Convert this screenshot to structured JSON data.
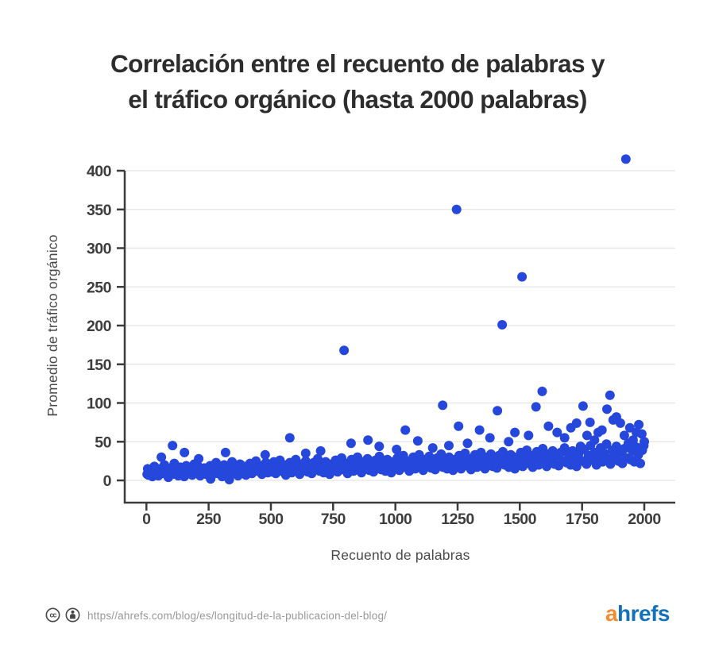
{
  "title": {
    "line1": "Correlación entre el recuento de palabras y",
    "line2": "el tráfico orgánico (hasta 2000 palabras)"
  },
  "colors": {
    "dot": "#2547db",
    "axis": "#3b3b3b",
    "grid": "#e8e8e8",
    "tick_label": "#3d3d3d",
    "axis_title": "#4a4a4a",
    "title_text": "#2d2d2d",
    "url_text": "#97989a",
    "license_icon": "#474747",
    "logo_a": "#f68a2e",
    "logo_hrefs": "#1271b8",
    "background": "#ffffff"
  },
  "footer": {
    "cc_label": "cc",
    "url": "https//ahrefs.com/blog/es/longitud-de-la-publicacion-del-blog/",
    "logo_a": "a",
    "logo_rest": "hrefs"
  },
  "chart_data": {
    "type": "scatter",
    "title": "Correlación entre el recuento de palabras y el tráfico orgánico (hasta 2000 palabras)",
    "xlabel": "Recuento de palabras",
    "ylabel": "Promedio de tráfico orgánico",
    "xlim": [
      0,
      2000
    ],
    "ylim": [
      0,
      400
    ],
    "x_ticks": [
      0,
      250,
      500,
      750,
      1000,
      1250,
      1500,
      1750,
      2000
    ],
    "y_ticks": [
      0,
      50,
      100,
      150,
      200,
      250,
      300,
      350,
      400
    ],
    "grid": "horizontal",
    "legend": "none",
    "marker": {
      "radius": 6,
      "color": "#2547db"
    },
    "band": {
      "x_start": 8,
      "x_step": 8,
      "values": [
        7,
        14,
        5,
        18,
        10,
        6,
        15,
        9,
        20,
        12,
        4,
        16,
        8,
        22,
        11,
        6,
        17,
        13,
        5,
        19,
        9,
        15,
        7,
        21,
        12,
        18,
        6,
        10,
        16,
        8,
        13,
        19,
        7,
        14,
        23,
        9,
        16,
        5,
        20,
        12,
        17,
        8,
        24,
        10,
        15,
        6,
        21,
        13,
        18,
        7,
        11,
        22,
        9,
        16,
        25,
        12,
        19,
        8,
        14,
        23,
        10,
        17,
        11,
        24,
        9,
        17,
        26,
        12,
        20,
        7,
        15,
        23,
        10,
        18,
        27,
        13,
        8,
        21,
        16,
        25,
        11,
        19,
        9,
        23,
        14,
        28,
        12,
        20,
        10,
        24,
        16,
        8,
        21,
        13,
        26,
        11,
        19,
        29,
        14,
        22,
        9,
        17,
        27,
        12,
        21,
        30,
        15,
        10,
        24,
        18,
        28,
        13,
        22,
        11,
        26,
        16,
        31,
        14,
        23,
        12,
        27,
        19,
        10,
        24,
        16,
        29,
        13,
        22,
        32,
        17,
        25,
        12,
        20,
        30,
        15,
        24,
        33,
        18,
        13,
        27,
        21,
        31,
        16,
        25,
        14,
        29,
        19,
        34,
        17,
        26,
        15,
        30,
        22,
        13,
        27,
        18,
        32,
        15,
        25,
        35,
        19,
        28,
        14,
        23,
        33,
        17,
        27,
        36,
        21,
        15,
        30,
        24,
        34,
        18,
        28,
        16,
        32,
        22,
        37,
        20,
        29,
        17,
        33,
        25,
        15,
        30,
        21,
        36,
        18,
        28,
        39,
        22,
        32,
        17,
        26,
        37,
        20,
        31,
        41,
        24,
        18,
        34,
        27,
        38,
        21,
        32,
        19,
        36,
        25,
        42,
        23,
        33,
        20,
        38,
        28,
        18,
        34,
        44,
        25,
        40,
        21,
        32,
        45,
        26,
        36,
        20,
        30,
        42,
        24,
        35,
        47,
        28,
        21,
        39,
        31,
        44,
        25,
        36,
        22,
        41,
        29,
        48,
        27,
        38,
        24,
        43,
        33,
        22,
        39,
        50
      ]
    },
    "points": [
      [
        3,
        8
      ],
      [
        5,
        15
      ],
      [
        60,
        30
      ],
      [
        105,
        45
      ],
      [
        153,
        36
      ],
      [
        210,
        28
      ],
      [
        258,
        2
      ],
      [
        318,
        36
      ],
      [
        333,
        1
      ],
      [
        477,
        33
      ],
      [
        576,
        55
      ],
      [
        640,
        35
      ],
      [
        700,
        38
      ],
      [
        794,
        168
      ],
      [
        822,
        48
      ],
      [
        890,
        52
      ],
      [
        935,
        44
      ],
      [
        1005,
        40
      ],
      [
        1040,
        65
      ],
      [
        1090,
        51
      ],
      [
        1150,
        42
      ],
      [
        1190,
        97
      ],
      [
        1215,
        45
      ],
      [
        1246,
        350
      ],
      [
        1254,
        70
      ],
      [
        1290,
        48
      ],
      [
        1338,
        65
      ],
      [
        1380,
        55
      ],
      [
        1410,
        90
      ],
      [
        1429,
        201
      ],
      [
        1455,
        50
      ],
      [
        1480,
        62
      ],
      [
        1509,
        263
      ],
      [
        1535,
        58
      ],
      [
        1565,
        95
      ],
      [
        1590,
        115
      ],
      [
        1615,
        70
      ],
      [
        1650,
        62
      ],
      [
        1680,
        55
      ],
      [
        1705,
        68
      ],
      [
        1728,
        74
      ],
      [
        1754,
        96
      ],
      [
        1770,
        58
      ],
      [
        1782,
        75
      ],
      [
        1800,
        52
      ],
      [
        1815,
        62
      ],
      [
        1830,
        65
      ],
      [
        1850,
        92
      ],
      [
        1862,
        110
      ],
      [
        1875,
        78
      ],
      [
        1888,
        82
      ],
      [
        1904,
        74
      ],
      [
        1920,
        58
      ],
      [
        1926,
        415
      ],
      [
        1942,
        68
      ],
      [
        1955,
        52
      ],
      [
        1968,
        62
      ],
      [
        1978,
        72
      ],
      [
        1990,
        60
      ],
      [
        1998,
        45
      ]
    ]
  }
}
